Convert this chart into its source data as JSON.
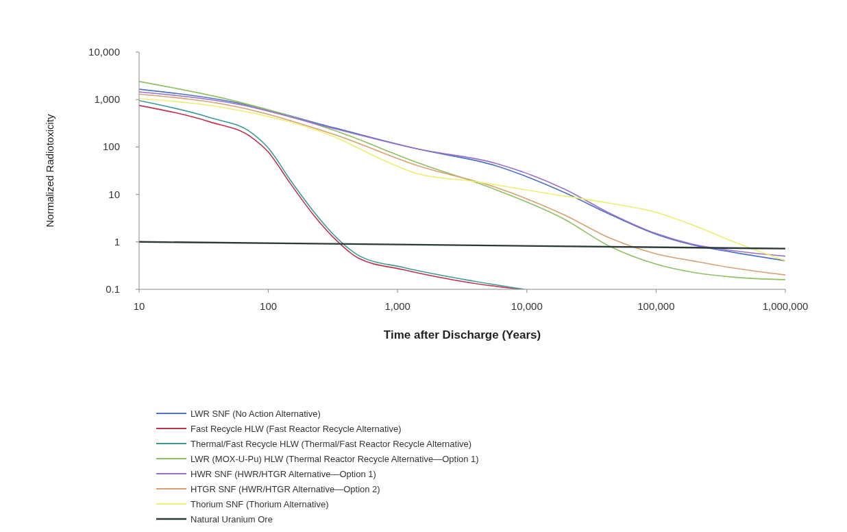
{
  "chart_data": {
    "type": "line",
    "xlabel": "Time after Discharge (Years)",
    "ylabel": "Normalized Radiotoxicity",
    "log": "xy",
    "grid": false,
    "legend": "bottom",
    "marker": "none",
    "line_style": "solid",
    "xlim": [
      10,
      1000000
    ],
    "ylim": [
      0.1,
      10000
    ],
    "xticks": [
      {
        "value": 10,
        "label": "10"
      },
      {
        "value": 100,
        "label": "100"
      },
      {
        "value": 1000,
        "label": "1,000"
      },
      {
        "value": 10000,
        "label": "10,000"
      },
      {
        "value": 100000,
        "label": "100,000"
      },
      {
        "value": 1000000,
        "label": "1,000,000"
      }
    ],
    "yticks": [
      {
        "value": 0.1,
        "label": "0.1"
      },
      {
        "value": 1,
        "label": "1"
      },
      {
        "value": 10,
        "label": "10"
      },
      {
        "value": 100,
        "label": "100"
      },
      {
        "value": 1000,
        "label": "1,000"
      },
      {
        "value": 10000,
        "label": "10,000"
      }
    ],
    "series": [
      {
        "name": "LWR SNF (No Action Alternative)",
        "color": "#4a72c4",
        "x": [
          10,
          58,
          330,
          1450,
          5800,
          19500,
          44000,
          100000,
          190000,
          400000,
          1000000
        ],
        "values": [
          1650,
          850,
          250,
          90,
          40,
          11,
          3.8,
          1.45,
          0.87,
          0.6,
          0.4
        ]
      },
      {
        "name": "Fast Recycle HLW (Fast Reactor Recycle Alternative)",
        "color": "#c0304a",
        "x": [
          10,
          35,
          74,
          98,
          148,
          222,
          333,
          500,
          1100,
          3800,
          9000
        ],
        "values": [
          750,
          340,
          160,
          83,
          17,
          3.8,
          1.1,
          0.45,
          0.26,
          0.135,
          0.1
        ]
      },
      {
        "name": "Thermal/Fast Recycle HLW (Thermal/Fast Reactor Recycle Alternative)",
        "color": "#3a9a9a",
        "x": [
          10,
          35,
          74,
          100,
          150,
          225,
          340,
          510,
          1100,
          3800,
          9500
        ],
        "values": [
          950,
          420,
          200,
          95,
          19,
          4.3,
          1.2,
          0.5,
          0.29,
          0.15,
          0.1
        ]
      },
      {
        "name": "LWR (MOX-U-Pu) HLW (Thermal Reactor Recycle Alternative—Option 1)",
        "color": "#8cc060",
        "x": [
          10,
          58,
          330,
          1450,
          5800,
          19500,
          44000,
          100000,
          190000,
          400000,
          1000000
        ],
        "values": [
          2400,
          900,
          220,
          46,
          12.5,
          3,
          0.8,
          0.34,
          0.23,
          0.18,
          0.16
        ]
      },
      {
        "name": "HWR SNF (HWR/HTGR Alternative—Option 1)",
        "color": "#9a70c8",
        "x": [
          10,
          58,
          330,
          1450,
          5800,
          19500,
          44000,
          100000,
          190000,
          400000,
          1000000
        ],
        "values": [
          1450,
          800,
          240,
          90,
          45,
          13,
          4,
          1.5,
          0.9,
          0.65,
          0.5
        ]
      },
      {
        "name": "HTGR SNF (HWR/HTGR Alternative—Option 2)",
        "color": "#d8a070",
        "x": [
          10,
          58,
          330,
          1450,
          5800,
          19500,
          44000,
          100000,
          190000,
          400000,
          1000000
        ],
        "values": [
          1300,
          700,
          180,
          40,
          14,
          3.7,
          1.2,
          0.56,
          0.4,
          0.28,
          0.2
        ]
      },
      {
        "name": "Thorium SNF (Thorium Alternative)",
        "color": "#eeee70",
        "x": [
          10,
          58,
          330,
          760,
          1450,
          3800,
          13000,
          44000,
          100000,
          190000,
          400000,
          1000000
        ],
        "values": [
          1050,
          600,
          160,
          54,
          27,
          19,
          11,
          6.5,
          4.2,
          2.3,
          1,
          0.4
        ]
      },
      {
        "name": "Natural Uranium Ore",
        "color": "#2a3a3a",
        "x": [
          10,
          1000,
          1000000
        ],
        "values": [
          1,
          0.88,
          0.72
        ]
      }
    ]
  }
}
